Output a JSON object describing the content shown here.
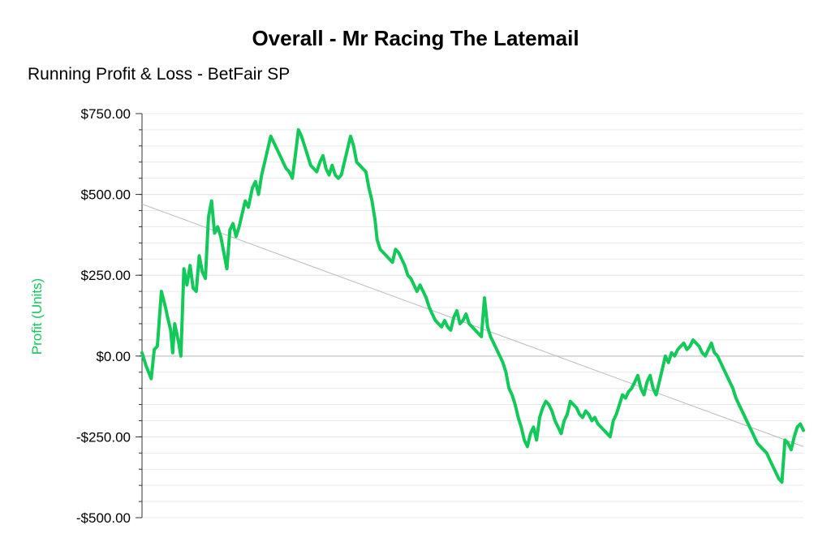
{
  "chart_data": {
    "type": "line",
    "title": "Overall - Mr Racing The Latemail",
    "subtitle": "Running Profit & Loss - BetFair SP",
    "xlabel": "",
    "ylabel": "Profit (Units)",
    "ylim": [
      -500,
      750
    ],
    "y_ticks": [
      750,
      500,
      250,
      0,
      -250,
      -500
    ],
    "y_tick_labels": [
      "$750.00",
      "$500.00",
      "$250.00",
      "$0.00",
      "-$250.00",
      "-$500.00"
    ],
    "grid": true,
    "series": [
      {
        "color": "#13c95a",
        "x_range": [
          0,
          1
        ],
        "points": [
          [
            0.0,
            10
          ],
          [
            0.004,
            -30
          ],
          [
            0.009,
            -70
          ],
          [
            0.012,
            20
          ],
          [
            0.015,
            30
          ],
          [
            0.019,
            200
          ],
          [
            0.023,
            150
          ],
          [
            0.025,
            120
          ],
          [
            0.028,
            80
          ],
          [
            0.03,
            10
          ],
          [
            0.032,
            100
          ],
          [
            0.034,
            70
          ],
          [
            0.036,
            40
          ],
          [
            0.038,
            0
          ],
          [
            0.041,
            270
          ],
          [
            0.044,
            220
          ],
          [
            0.047,
            280
          ],
          [
            0.05,
            210
          ],
          [
            0.053,
            200
          ],
          [
            0.056,
            310
          ],
          [
            0.059,
            260
          ],
          [
            0.062,
            240
          ],
          [
            0.065,
            430
          ],
          [
            0.068,
            480
          ],
          [
            0.071,
            380
          ],
          [
            0.074,
            400
          ],
          [
            0.077,
            370
          ],
          [
            0.08,
            320
          ],
          [
            0.083,
            270
          ],
          [
            0.086,
            390
          ],
          [
            0.089,
            410
          ],
          [
            0.092,
            370
          ],
          [
            0.095,
            400
          ],
          [
            0.098,
            440
          ],
          [
            0.101,
            480
          ],
          [
            0.104,
            460
          ],
          [
            0.108,
            520
          ],
          [
            0.111,
            540
          ],
          [
            0.114,
            500
          ],
          [
            0.117,
            560
          ],
          [
            0.12,
            600
          ],
          [
            0.123,
            640
          ],
          [
            0.126,
            680
          ],
          [
            0.129,
            660
          ],
          [
            0.132,
            640
          ],
          [
            0.135,
            620
          ],
          [
            0.138,
            600
          ],
          [
            0.141,
            580
          ],
          [
            0.144,
            570
          ],
          [
            0.147,
            550
          ],
          [
            0.15,
            620
          ],
          [
            0.153,
            700
          ],
          [
            0.156,
            680
          ],
          [
            0.159,
            650
          ],
          [
            0.162,
            620
          ],
          [
            0.165,
            590
          ],
          [
            0.168,
            580
          ],
          [
            0.171,
            570
          ],
          [
            0.174,
            600
          ],
          [
            0.177,
            620
          ],
          [
            0.18,
            580
          ],
          [
            0.183,
            560
          ],
          [
            0.186,
            590
          ],
          [
            0.189,
            560
          ],
          [
            0.192,
            550
          ],
          [
            0.195,
            560
          ],
          [
            0.198,
            600
          ],
          [
            0.201,
            640
          ],
          [
            0.204,
            680
          ],
          [
            0.207,
            650
          ],
          [
            0.21,
            600
          ],
          [
            0.213,
            590
          ],
          [
            0.216,
            580
          ],
          [
            0.219,
            570
          ],
          [
            0.222,
            520
          ],
          [
            0.225,
            480
          ],
          [
            0.228,
            420
          ],
          [
            0.23,
            360
          ],
          [
            0.233,
            330
          ],
          [
            0.236,
            320
          ],
          [
            0.239,
            310
          ],
          [
            0.242,
            300
          ],
          [
            0.245,
            290
          ],
          [
            0.248,
            330
          ],
          [
            0.251,
            320
          ],
          [
            0.254,
            300
          ],
          [
            0.257,
            280
          ],
          [
            0.26,
            250
          ],
          [
            0.263,
            240
          ],
          [
            0.266,
            220
          ],
          [
            0.269,
            200
          ],
          [
            0.272,
            220
          ],
          [
            0.275,
            200
          ],
          [
            0.278,
            180
          ],
          [
            0.281,
            150
          ],
          [
            0.284,
            130
          ],
          [
            0.287,
            110
          ],
          [
            0.29,
            100
          ],
          [
            0.293,
            90
          ],
          [
            0.296,
            110
          ],
          [
            0.299,
            90
          ],
          [
            0.302,
            80
          ],
          [
            0.305,
            120
          ],
          [
            0.308,
            140
          ],
          [
            0.311,
            100
          ],
          [
            0.314,
            110
          ],
          [
            0.317,
            130
          ],
          [
            0.32,
            100
          ],
          [
            0.323,
            90
          ],
          [
            0.326,
            80
          ],
          [
            0.329,
            70
          ],
          [
            0.332,
            60
          ],
          [
            0.335,
            180
          ],
          [
            0.338,
            90
          ],
          [
            0.341,
            60
          ],
          [
            0.344,
            40
          ],
          [
            0.347,
            20
          ],
          [
            0.35,
            0
          ],
          [
            0.353,
            -20
          ],
          [
            0.356,
            -50
          ],
          [
            0.359,
            -100
          ],
          [
            0.362,
            -120
          ],
          [
            0.365,
            -150
          ],
          [
            0.368,
            -190
          ],
          [
            0.371,
            -220
          ],
          [
            0.374,
            -260
          ],
          [
            0.377,
            -280
          ],
          [
            0.38,
            -240
          ],
          [
            0.383,
            -220
          ],
          [
            0.386,
            -260
          ],
          [
            0.389,
            -190
          ],
          [
            0.392,
            -160
          ],
          [
            0.395,
            -140
          ],
          [
            0.398,
            -150
          ],
          [
            0.401,
            -170
          ],
          [
            0.404,
            -200
          ],
          [
            0.407,
            -220
          ],
          [
            0.41,
            -240
          ],
          [
            0.413,
            -200
          ],
          [
            0.416,
            -180
          ],
          [
            0.419,
            -140
          ],
          [
            0.422,
            -150
          ],
          [
            0.425,
            -160
          ],
          [
            0.428,
            -180
          ],
          [
            0.431,
            -190
          ],
          [
            0.434,
            -170
          ],
          [
            0.437,
            -180
          ],
          [
            0.44,
            -200
          ],
          [
            0.443,
            -190
          ],
          [
            0.446,
            -210
          ],
          [
            0.449,
            -220
          ],
          [
            0.452,
            -230
          ],
          [
            0.455,
            -240
          ],
          [
            0.458,
            -250
          ],
          [
            0.461,
            -200
          ],
          [
            0.464,
            -180
          ],
          [
            0.467,
            -150
          ],
          [
            0.47,
            -120
          ],
          [
            0.473,
            -130
          ],
          [
            0.476,
            -110
          ],
          [
            0.479,
            -100
          ],
          [
            0.482,
            -80
          ],
          [
            0.485,
            -60
          ],
          [
            0.488,
            -100
          ],
          [
            0.491,
            -120
          ],
          [
            0.494,
            -80
          ],
          [
            0.497,
            -60
          ],
          [
            0.5,
            -100
          ],
          [
            0.503,
            -120
          ],
          [
            0.506,
            -80
          ],
          [
            0.509,
            -40
          ],
          [
            0.512,
            0
          ],
          [
            0.515,
            -20
          ],
          [
            0.518,
            10
          ],
          [
            0.521,
            0
          ],
          [
            0.524,
            20
          ],
          [
            0.527,
            30
          ],
          [
            0.53,
            40
          ],
          [
            0.533,
            20
          ],
          [
            0.536,
            30
          ],
          [
            0.539,
            50
          ],
          [
            0.542,
            40
          ],
          [
            0.545,
            30
          ],
          [
            0.548,
            10
          ],
          [
            0.551,
            0
          ],
          [
            0.554,
            20
          ],
          [
            0.557,
            40
          ],
          [
            0.56,
            10
          ],
          [
            0.563,
            0
          ],
          [
            0.566,
            -20
          ],
          [
            0.569,
            -40
          ],
          [
            0.572,
            -60
          ],
          [
            0.575,
            -80
          ],
          [
            0.578,
            -100
          ],
          [
            0.581,
            -130
          ],
          [
            0.584,
            -150
          ],
          [
            0.587,
            -170
          ],
          [
            0.59,
            -190
          ],
          [
            0.593,
            -210
          ],
          [
            0.596,
            -230
          ],
          [
            0.599,
            -250
          ],
          [
            0.602,
            -270
          ],
          [
            0.605,
            -280
          ],
          [
            0.608,
            -290
          ],
          [
            0.611,
            -300
          ],
          [
            0.614,
            -320
          ],
          [
            0.617,
            -340
          ],
          [
            0.62,
            -360
          ],
          [
            0.623,
            -380
          ],
          [
            0.626,
            -390
          ],
          [
            0.629,
            -260
          ],
          [
            0.632,
            -270
          ],
          [
            0.635,
            -290
          ],
          [
            0.638,
            -250
          ],
          [
            0.641,
            -220
          ],
          [
            0.644,
            -210
          ],
          [
            0.647,
            -230
          ]
        ]
      }
    ],
    "trendline": {
      "start": 470,
      "end": -280,
      "color": "#bbbbbb"
    }
  }
}
